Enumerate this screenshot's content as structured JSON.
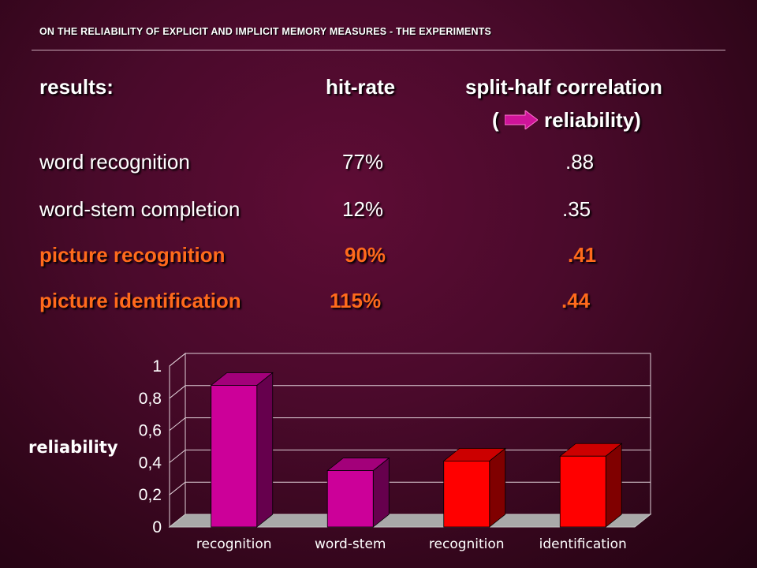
{
  "header": {
    "title": "ON THE RELIABILITY OF EXPLICIT AND IMPLICIT MEMORY MEASURES - THE EXPERIMENTS"
  },
  "table": {
    "label": "results:",
    "col_hit": "hit-rate",
    "col_split": "split-half correlation",
    "sub_open": "(",
    "sub_text": "reliability)",
    "arrow_icon": "right-arrow-icon",
    "arrow_color": "#d0149a",
    "rows": [
      {
        "name": "word recognition",
        "hit": "77%",
        "rel": ".88",
        "color": "#ffffff"
      },
      {
        "name": "word-stem completion",
        "hit": "12%",
        "rel": ".35",
        "color": "#ffffff"
      },
      {
        "name": "picture recognition",
        "hit": "90%",
        "rel": ".41",
        "color": "#ff6a1c"
      },
      {
        "name": "picture identification",
        "hit": "115%",
        "rel": ".44",
        "color": "#ff6a1c"
      }
    ]
  },
  "chart_data": {
    "type": "bar",
    "ylabel": "reliability",
    "categories": [
      "recognition",
      "word-stem",
      "recognition",
      "identification"
    ],
    "values": [
      0.88,
      0.35,
      0.41,
      0.44
    ],
    "bar_colors": [
      "#cc0099",
      "#cc0099",
      "#ff0000",
      "#ff0000"
    ],
    "yticks": [
      "0",
      "0,2",
      "0,4",
      "0,6",
      "0,8",
      "1"
    ],
    "ylim": [
      0,
      1
    ],
    "grid": true,
    "style": "3d"
  }
}
